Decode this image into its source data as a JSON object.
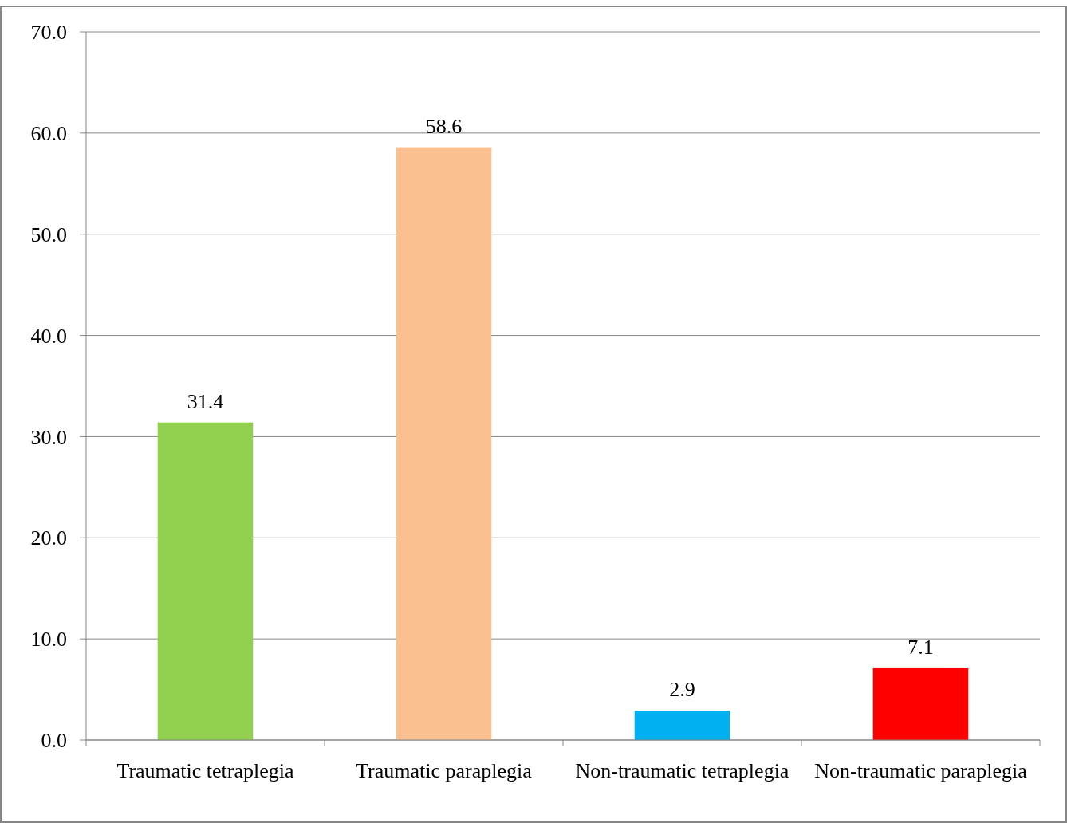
{
  "chart_data": {
    "type": "bar",
    "categories": [
      "Traumatic tetraplegia",
      "Traumatic paraplegia",
      "Non-traumatic tetraplegia",
      "Non-traumatic paraplegia"
    ],
    "values": [
      31.4,
      58.6,
      2.9,
      7.1
    ],
    "colors": [
      "#92d050",
      "#fac090",
      "#00b0f0",
      "#ff0000"
    ],
    "ylim": [
      0,
      70
    ],
    "yticks": [
      {
        "value": 0,
        "label": "0.0"
      },
      {
        "value": 10,
        "label": "10.0"
      },
      {
        "value": 20,
        "label": "20.0"
      },
      {
        "value": 30,
        "label": "30.0"
      },
      {
        "value": 40,
        "label": "40.0"
      },
      {
        "value": 50,
        "label": "50.0"
      },
      {
        "value": 60,
        "label": "60.0"
      },
      {
        "value": 70,
        "label": "70.0"
      }
    ],
    "grid": "y",
    "data_labels": true
  }
}
